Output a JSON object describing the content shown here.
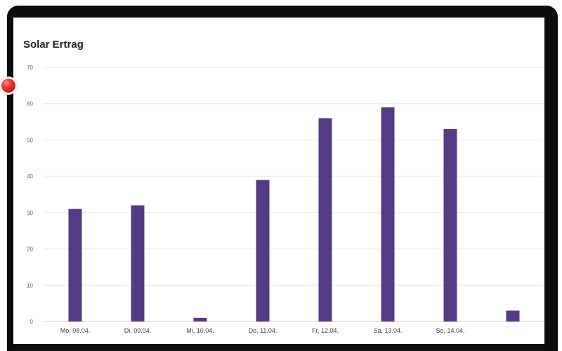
{
  "chart_data": {
    "type": "bar",
    "title": "Solar Ertrag",
    "xlabel": "",
    "ylabel": "",
    "categories": [
      "Mo, 08.04.",
      "Di, 09.04.",
      "Mi, 10.04.",
      "Do, 11.04.",
      "Fr, 12.04.",
      "Sa, 13.04.",
      "So, 14.04.",
      ""
    ],
    "values": [
      31,
      32,
      1,
      39,
      56,
      59,
      53,
      3
    ],
    "ylim": [
      0,
      70
    ],
    "yticks": [
      0,
      10,
      20,
      30,
      40,
      50,
      60,
      70
    ],
    "grid": true,
    "legend": "none",
    "bar_color": "#553b86",
    "grid_color": "#e6e6e6"
  },
  "marker": {
    "icon": "red-ball-icon",
    "color": "#e53935"
  }
}
